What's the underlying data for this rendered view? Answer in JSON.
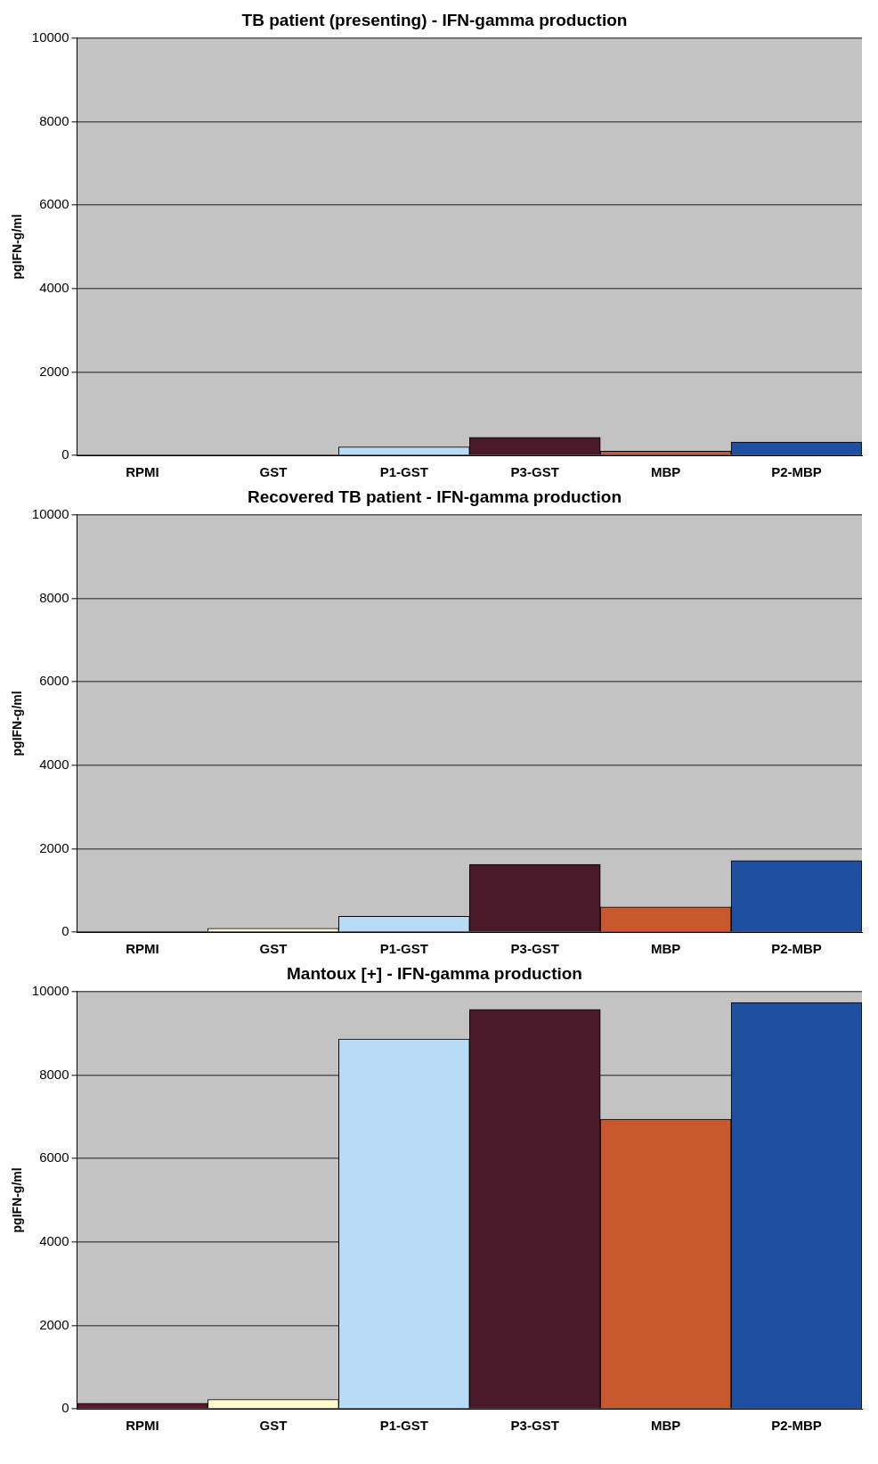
{
  "chart_data": [
    {
      "type": "bar",
      "title": "TB patient (presenting) - IFN-gamma production",
      "ylabel": "pgIFN-g/ml",
      "categories": [
        "RPMI",
        "GST",
        "P1-GST",
        "P3-GST",
        "MBP",
        "P2-MBP"
      ],
      "values": [
        0,
        0,
        200,
        430,
        100,
        320
      ],
      "colors": [
        "#5a1a2a",
        "#fffbcc",
        "#b8dcf5",
        "#4a1a2a",
        "#c8582e",
        "#1f4fa0"
      ],
      "ylim": [
        0,
        10000
      ],
      "yticks": [
        0,
        2000,
        4000,
        6000,
        8000,
        10000
      ],
      "grid": "y"
    },
    {
      "type": "bar",
      "title": "Recovered TB patient - IFN-gamma production",
      "ylabel": "pgIFN-g/ml",
      "categories": [
        "RPMI",
        "GST",
        "P1-GST",
        "P3-GST",
        "MBP",
        "P2-MBP"
      ],
      "values": [
        0,
        90,
        380,
        1620,
        600,
        1710
      ],
      "colors": [
        "#5a1a2a",
        "#fffbcc",
        "#b8dcf5",
        "#4a1a2a",
        "#c8582e",
        "#1f4fa0"
      ],
      "ylim": [
        0,
        10000
      ],
      "yticks": [
        0,
        2000,
        4000,
        6000,
        8000,
        10000
      ],
      "grid": "y"
    },
    {
      "type": "bar",
      "title": "Mantoux [+] - IFN-gamma production",
      "ylabel": "pgIFN-g/ml",
      "categories": [
        "RPMI",
        "GST",
        "P1-GST",
        "P3-GST",
        "MBP",
        "P2-MBP"
      ],
      "values": [
        130,
        220,
        8860,
        9570,
        6940,
        9740
      ],
      "colors": [
        "#5a1a2a",
        "#fffbcc",
        "#b8dcf5",
        "#4a1a2a",
        "#c8582e",
        "#1f4fa0"
      ],
      "ylim": [
        0,
        10000
      ],
      "yticks": [
        0,
        2000,
        4000,
        6000,
        8000,
        10000
      ],
      "grid": "y"
    }
  ]
}
